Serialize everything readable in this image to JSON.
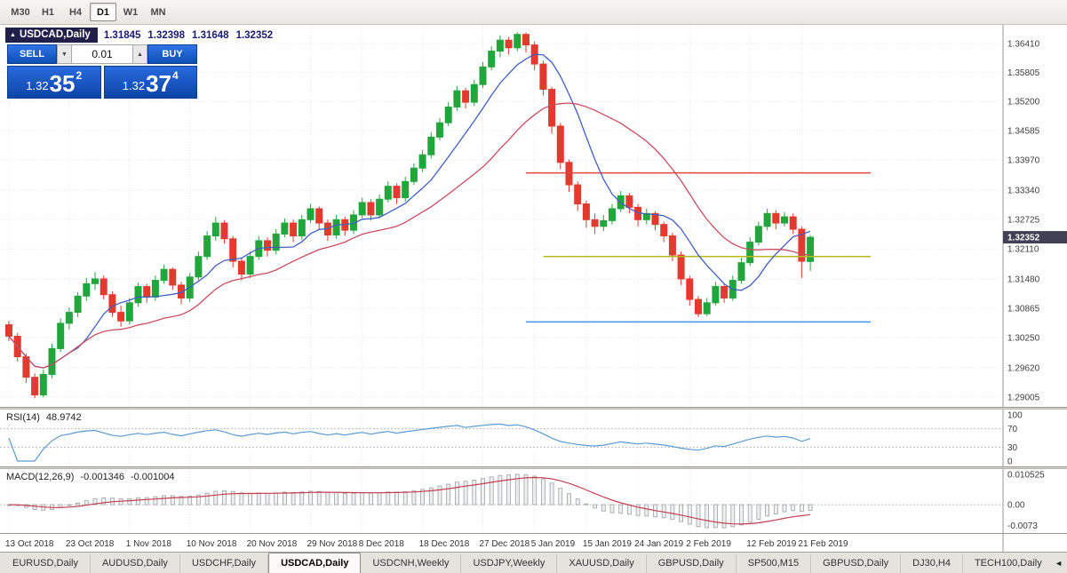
{
  "toolbar": {
    "timeframes": [
      {
        "label": "M30",
        "active": false
      },
      {
        "label": "H1",
        "active": false
      },
      {
        "label": "H4",
        "active": false
      },
      {
        "label": "D1",
        "active": true
      },
      {
        "label": "W1",
        "active": false
      },
      {
        "label": "MN",
        "active": false
      }
    ]
  },
  "chart": {
    "marker_icon": "▲",
    "symbol_title": "USDCAD,Daily",
    "ohlc": {
      "open": "1.31845",
      "high": "1.32398",
      "low": "1.31648",
      "close": "1.32352"
    },
    "trade_panel": {
      "sell_label": "SELL",
      "buy_label": "BUY",
      "lot_value": "0.01",
      "lot_down_icon": "▼",
      "lot_up_icon": "▲",
      "sell_price": {
        "prefix": "1.32",
        "main": "35",
        "pip": "2"
      },
      "buy_price": {
        "prefix": "1.32",
        "main": "37",
        "pip": "4"
      }
    }
  },
  "rsi": {
    "name": "RSI(14)",
    "value": "48.9742"
  },
  "macd": {
    "name": "MACD(12,26,9)",
    "value": "-0.001346",
    "signal_value": "-0.001004"
  },
  "bottom_tabs": {
    "scroll_left_icon": "◄",
    "tabs": [
      {
        "label": "EURUSD,Daily",
        "active": false
      },
      {
        "label": "AUDUSD,Daily",
        "active": false
      },
      {
        "label": "USDCHF,Daily",
        "active": false
      },
      {
        "label": "USDCAD,Daily",
        "active": true
      },
      {
        "label": "USDCNH,Weekly",
        "active": false
      },
      {
        "label": "USDJPY,Weekly",
        "active": false
      },
      {
        "label": "XAUUSD,Daily",
        "active": false
      },
      {
        "label": "GBPUSD,Daily",
        "active": false
      },
      {
        "label": "SP500,M15",
        "active": false
      },
      {
        "label": "GBPUSD,Daily",
        "active": false
      },
      {
        "label": "DJ30,H4",
        "active": false
      },
      {
        "label": "TECH100,Daily",
        "active": false
      }
    ]
  },
  "chart_data": {
    "type": "candlestick",
    "symbol": "USDCAD",
    "timeframe": "Daily",
    "current_price": 1.32352,
    "current_price_label": "1.32352",
    "y_axis": {
      "min": 1.288,
      "max": 1.368,
      "labels": [
        "1.36410",
        "1.35805",
        "1.35200",
        "1.34585",
        "1.33970",
        "1.33340",
        "1.32725",
        "1.32110",
        "1.31480",
        "1.30865",
        "1.30250",
        "1.29620",
        "1.29005"
      ]
    },
    "x_axis": {
      "labels": [
        "13 Oct 2018",
        "23 Oct 2018",
        "1 Nov 2018",
        "10 Nov 2018",
        "20 Nov 2018",
        "29 Nov 2018",
        "8 Dec 2018",
        "18 Dec 2018",
        "27 Dec 2018",
        "5 Jan 2019",
        "15 Jan 2019",
        "24 Jan 2019",
        "2 Feb 2019",
        "12 Feb 2019",
        "21 Feb 2019"
      ],
      "indices": [
        0,
        7,
        14,
        21,
        28,
        35,
        41,
        48,
        55,
        61,
        67,
        73,
        79,
        86,
        92
      ]
    },
    "overlays": {
      "ma_fast": {
        "period": 8,
        "color": "#3f5fc4"
      },
      "ma_slow": {
        "period": 20,
        "color": "#c94d5e"
      },
      "hlines": [
        {
          "price": 1.337,
          "from_index": 60,
          "to_index": 100,
          "color": "#e84338"
        },
        {
          "price": 1.3195,
          "from_index": 62,
          "to_index": 100,
          "color": "#b8b81a"
        },
        {
          "price": 1.3058,
          "from_index": 60,
          "to_index": 100,
          "color": "#3d96e8"
        }
      ]
    },
    "indicators": {
      "rsi": {
        "period": 14,
        "levels": [
          70,
          30
        ],
        "range": [
          0,
          100
        ],
        "axis_labels": [
          "100",
          "70",
          "30",
          "0"
        ]
      },
      "macd": {
        "fast": 12,
        "slow": 26,
        "signal": 9,
        "axis_labels": [
          "0.010525",
          "0.00",
          "-0.0073"
        ]
      }
    },
    "style": {
      "bull": "#21a63c",
      "bear": "#e23a2e",
      "grid": "#e7e7e7",
      "tag_bg": "#414155",
      "rsi_line": "#5b9bd1",
      "macd_hist": "#9aa0a6",
      "macd_signal": "#c43f4e",
      "level_line": "#bbbbbb",
      "axis_line": "#9a9a9a"
    },
    "candles": [
      [
        1.3052,
        1.306,
        1.3018,
        1.3028
      ],
      [
        1.3028,
        1.3035,
        1.2975,
        1.2985
      ],
      [
        1.2985,
        1.2992,
        1.293,
        1.2942
      ],
      [
        1.2942,
        1.295,
        1.2898,
        1.2905
      ],
      [
        1.2905,
        1.2958,
        1.29,
        1.2948
      ],
      [
        1.2948,
        1.3012,
        1.294,
        1.3002
      ],
      [
        1.3002,
        1.3065,
        1.2995,
        1.3055
      ],
      [
        1.3055,
        1.3088,
        1.3042,
        1.3078
      ],
      [
        1.3078,
        1.312,
        1.3068,
        1.3112
      ],
      [
        1.3112,
        1.315,
        1.3102,
        1.3138
      ],
      [
        1.3138,
        1.3162,
        1.3125,
        1.3148
      ],
      [
        1.3148,
        1.3155,
        1.3105,
        1.3115
      ],
      [
        1.3115,
        1.3122,
        1.3068,
        1.3078
      ],
      [
        1.3078,
        1.3092,
        1.3048,
        1.306
      ],
      [
        1.306,
        1.3108,
        1.3052,
        1.3098
      ],
      [
        1.3098,
        1.314,
        1.309,
        1.3132
      ],
      [
        1.3132,
        1.3138,
        1.3098,
        1.311
      ],
      [
        1.311,
        1.3155,
        1.3102,
        1.3145
      ],
      [
        1.3145,
        1.3178,
        1.3138,
        1.3168
      ],
      [
        1.3168,
        1.3172,
        1.3125,
        1.3135
      ],
      [
        1.3135,
        1.3142,
        1.3095,
        1.3108
      ],
      [
        1.3108,
        1.316,
        1.31,
        1.3152
      ],
      [
        1.3152,
        1.3205,
        1.3145,
        1.3195
      ],
      [
        1.3195,
        1.3248,
        1.3188,
        1.3238
      ],
      [
        1.3238,
        1.3278,
        1.3228,
        1.3265
      ],
      [
        1.3265,
        1.327,
        1.3222,
        1.3232
      ],
      [
        1.3232,
        1.3238,
        1.3172,
        1.3185
      ],
      [
        1.3185,
        1.3192,
        1.3145,
        1.3158
      ],
      [
        1.3158,
        1.3205,
        1.315,
        1.3195
      ],
      [
        1.3195,
        1.3238,
        1.3188,
        1.3228
      ],
      [
        1.3228,
        1.3235,
        1.3195,
        1.3208
      ],
      [
        1.3208,
        1.3252,
        1.32,
        1.3242
      ],
      [
        1.3242,
        1.3275,
        1.3235,
        1.3265
      ],
      [
        1.3265,
        1.3272,
        1.3225,
        1.3238
      ],
      [
        1.3238,
        1.3282,
        1.323,
        1.3272
      ],
      [
        1.3272,
        1.3305,
        1.3265,
        1.3295
      ],
      [
        1.3295,
        1.33,
        1.3252,
        1.3265
      ],
      [
        1.3265,
        1.3272,
        1.3228,
        1.324
      ],
      [
        1.324,
        1.3282,
        1.3232,
        1.3272
      ],
      [
        1.3272,
        1.3278,
        1.3238,
        1.325
      ],
      [
        1.325,
        1.3292,
        1.3242,
        1.3282
      ],
      [
        1.3282,
        1.3318,
        1.3275,
        1.3308
      ],
      [
        1.3308,
        1.3315,
        1.327,
        1.3282
      ],
      [
        1.3282,
        1.3325,
        1.3275,
        1.3315
      ],
      [
        1.3315,
        1.3352,
        1.3308,
        1.3342
      ],
      [
        1.3342,
        1.3348,
        1.3305,
        1.3318
      ],
      [
        1.3318,
        1.3362,
        1.331,
        1.3352
      ],
      [
        1.3352,
        1.339,
        1.3345,
        1.338
      ],
      [
        1.338,
        1.3418,
        1.3372,
        1.3408
      ],
      [
        1.3408,
        1.3455,
        1.34,
        1.3445
      ],
      [
        1.3445,
        1.3485,
        1.3438,
        1.3475
      ],
      [
        1.3475,
        1.3518,
        1.3468,
        1.3508
      ],
      [
        1.3508,
        1.3552,
        1.35,
        1.3542
      ],
      [
        1.3542,
        1.3548,
        1.3505,
        1.3518
      ],
      [
        1.3518,
        1.3565,
        1.351,
        1.3555
      ],
      [
        1.3555,
        1.3602,
        1.3548,
        1.3592
      ],
      [
        1.3592,
        1.3635,
        1.3585,
        1.3625
      ],
      [
        1.3625,
        1.3658,
        1.3612,
        1.3648
      ],
      [
        1.3648,
        1.3655,
        1.3618,
        1.3632
      ],
      [
        1.3632,
        1.3665,
        1.3625,
        1.366
      ],
      [
        1.366,
        1.3664,
        1.3622,
        1.3638
      ],
      [
        1.3638,
        1.3645,
        1.3585,
        1.3598
      ],
      [
        1.3598,
        1.3605,
        1.3532,
        1.3545
      ],
      [
        1.3545,
        1.355,
        1.3452,
        1.3468
      ],
      [
        1.3468,
        1.3475,
        1.3378,
        1.3392
      ],
      [
        1.3392,
        1.3398,
        1.333,
        1.3345
      ],
      [
        1.3345,
        1.3352,
        1.329,
        1.3305
      ],
      [
        1.3305,
        1.3312,
        1.3255,
        1.3272
      ],
      [
        1.3272,
        1.3285,
        1.3242,
        1.3258
      ],
      [
        1.3258,
        1.3282,
        1.3248,
        1.327
      ],
      [
        1.327,
        1.3305,
        1.3262,
        1.3295
      ],
      [
        1.3295,
        1.3332,
        1.3288,
        1.3322
      ],
      [
        1.3322,
        1.3328,
        1.3285,
        1.3298
      ],
      [
        1.3298,
        1.3305,
        1.3258,
        1.3272
      ],
      [
        1.3272,
        1.3295,
        1.3262,
        1.3285
      ],
      [
        1.3285,
        1.329,
        1.325,
        1.3262
      ],
      [
        1.3262,
        1.3268,
        1.3225,
        1.3238
      ],
      [
        1.3238,
        1.3245,
        1.3185,
        1.3198
      ],
      [
        1.3198,
        1.3205,
        1.3135,
        1.3148
      ],
      [
        1.3148,
        1.3155,
        1.3092,
        1.3105
      ],
      [
        1.3105,
        1.3112,
        1.3068,
        1.3075
      ],
      [
        1.3075,
        1.3108,
        1.307,
        1.3098
      ],
      [
        1.3098,
        1.3142,
        1.3092,
        1.3132
      ],
      [
        1.3132,
        1.3138,
        1.3098,
        1.3108
      ],
      [
        1.3108,
        1.3155,
        1.3102,
        1.3145
      ],
      [
        1.3145,
        1.3192,
        1.3138,
        1.3182
      ],
      [
        1.3182,
        1.3235,
        1.3175,
        1.3225
      ],
      [
        1.3225,
        1.3268,
        1.3218,
        1.3258
      ],
      [
        1.3258,
        1.3295,
        1.325,
        1.3285
      ],
      [
        1.3285,
        1.3292,
        1.3252,
        1.3265
      ],
      [
        1.3265,
        1.3288,
        1.3258,
        1.3278
      ],
      [
        1.3278,
        1.3285,
        1.3242,
        1.3252
      ],
      [
        1.3252,
        1.3258,
        1.315,
        1.3185
      ],
      [
        1.31845,
        1.32398,
        1.31648,
        1.32352
      ]
    ]
  }
}
